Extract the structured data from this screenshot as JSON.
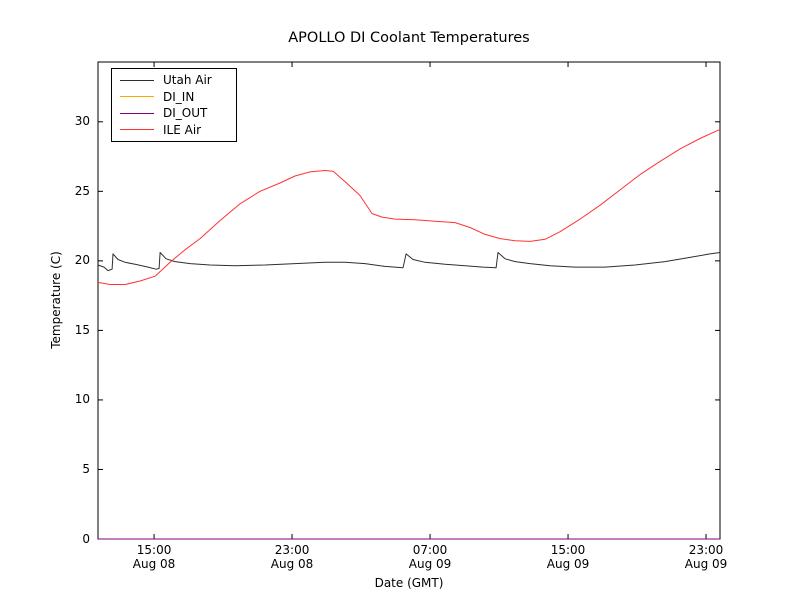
{
  "figure": {
    "background": "#ffffff",
    "axes_color": "#000000"
  },
  "chart_data": {
    "type": "line",
    "title": "APOLLO DI Coolant Temperatures",
    "xlabel": "Date (GMT)",
    "ylabel": "Temperature (C)",
    "grid": false,
    "legend_position": "upper left",
    "x_axis": {
      "unit": "hours since Aug 08 00:00 GMT",
      "range": [
        11.75,
        47.81
      ],
      "ticks": [
        {
          "hour": 15,
          "line1": "15:00",
          "line2": "Aug 08"
        },
        {
          "hour": 23,
          "line1": "23:00",
          "line2": "Aug 08"
        },
        {
          "hour": 31,
          "line1": "07:00",
          "line2": "Aug 09"
        },
        {
          "hour": 39,
          "line1": "15:00",
          "line2": "Aug 09"
        },
        {
          "hour": 47,
          "line1": "23:00",
          "line2": "Aug 09"
        }
      ]
    },
    "y_axis": {
      "range": [
        0,
        34.3
      ],
      "ticks": [
        0,
        5,
        10,
        15,
        20,
        25,
        30
      ],
      "tick_labels": [
        "0",
        "5",
        "10",
        "15",
        "20",
        "25",
        "30"
      ]
    },
    "series": [
      {
        "name": "Utah Air",
        "color": "#2e2e2e",
        "points": [
          [
            11.75,
            19.7
          ],
          [
            12.1,
            19.55
          ],
          [
            12.33,
            19.3
          ],
          [
            12.57,
            19.4
          ],
          [
            12.62,
            20.5
          ],
          [
            12.91,
            20.1
          ],
          [
            13.32,
            19.9
          ],
          [
            13.9,
            19.75
          ],
          [
            14.65,
            19.55
          ],
          [
            15.12,
            19.4
          ],
          [
            15.29,
            19.45
          ],
          [
            15.35,
            20.6
          ],
          [
            15.7,
            20.15
          ],
          [
            16.22,
            19.95
          ],
          [
            17.09,
            19.8
          ],
          [
            18.25,
            19.7
          ],
          [
            19.7,
            19.65
          ],
          [
            21.43,
            19.7
          ],
          [
            23.17,
            19.8
          ],
          [
            24.91,
            19.9
          ],
          [
            26.07,
            19.9
          ],
          [
            27.23,
            19.8
          ],
          [
            28.39,
            19.6
          ],
          [
            29.43,
            19.5
          ],
          [
            29.61,
            20.5
          ],
          [
            30.01,
            20.1
          ],
          [
            30.71,
            19.9
          ],
          [
            31.87,
            19.75
          ],
          [
            33.03,
            19.65
          ],
          [
            34.07,
            19.55
          ],
          [
            34.83,
            19.5
          ],
          [
            34.94,
            20.6
          ],
          [
            35.35,
            20.15
          ],
          [
            35.93,
            19.95
          ],
          [
            36.8,
            19.8
          ],
          [
            37.96,
            19.65
          ],
          [
            39.41,
            19.55
          ],
          [
            41.15,
            19.55
          ],
          [
            42.88,
            19.7
          ],
          [
            44.62,
            19.95
          ],
          [
            46.07,
            20.25
          ],
          [
            47.23,
            20.5
          ],
          [
            47.81,
            20.6
          ]
        ]
      },
      {
        "name": "DI_IN",
        "color": "#ffa500",
        "points": [
          [
            11.75,
            0
          ],
          [
            47.81,
            0
          ]
        ]
      },
      {
        "name": "DI_OUT",
        "color": "#800080",
        "points": [
          [
            11.75,
            0
          ],
          [
            47.81,
            0
          ]
        ]
      },
      {
        "name": "ILE Air",
        "color": "#ff3333",
        "points": [
          [
            11.75,
            18.45
          ],
          [
            12.45,
            18.3
          ],
          [
            13.32,
            18.3
          ],
          [
            14.19,
            18.55
          ],
          [
            15.06,
            18.9
          ],
          [
            15.93,
            19.9
          ],
          [
            16.8,
            20.8
          ],
          [
            17.67,
            21.6
          ],
          [
            18.83,
            22.9
          ],
          [
            19.99,
            24.1
          ],
          [
            21.14,
            25.0
          ],
          [
            22.3,
            25.6
          ],
          [
            23.17,
            26.1
          ],
          [
            24.04,
            26.4
          ],
          [
            24.91,
            26.5
          ],
          [
            25.38,
            26.45
          ],
          [
            26.07,
            25.7
          ],
          [
            26.94,
            24.7
          ],
          [
            27.64,
            23.4
          ],
          [
            28.22,
            23.15
          ],
          [
            28.97,
            23.0
          ],
          [
            30.13,
            22.95
          ],
          [
            31.29,
            22.85
          ],
          [
            32.45,
            22.75
          ],
          [
            33.32,
            22.4
          ],
          [
            34.19,
            21.9
          ],
          [
            35.06,
            21.6
          ],
          [
            35.93,
            21.45
          ],
          [
            36.8,
            21.4
          ],
          [
            37.67,
            21.55
          ],
          [
            38.54,
            22.1
          ],
          [
            39.7,
            23.0
          ],
          [
            40.86,
            24.0
          ],
          [
            42.02,
            25.1
          ],
          [
            43.17,
            26.2
          ],
          [
            44.33,
            27.15
          ],
          [
            45.49,
            28.05
          ],
          [
            46.65,
            28.8
          ],
          [
            47.35,
            29.2
          ],
          [
            47.81,
            29.45
          ]
        ]
      }
    ]
  }
}
